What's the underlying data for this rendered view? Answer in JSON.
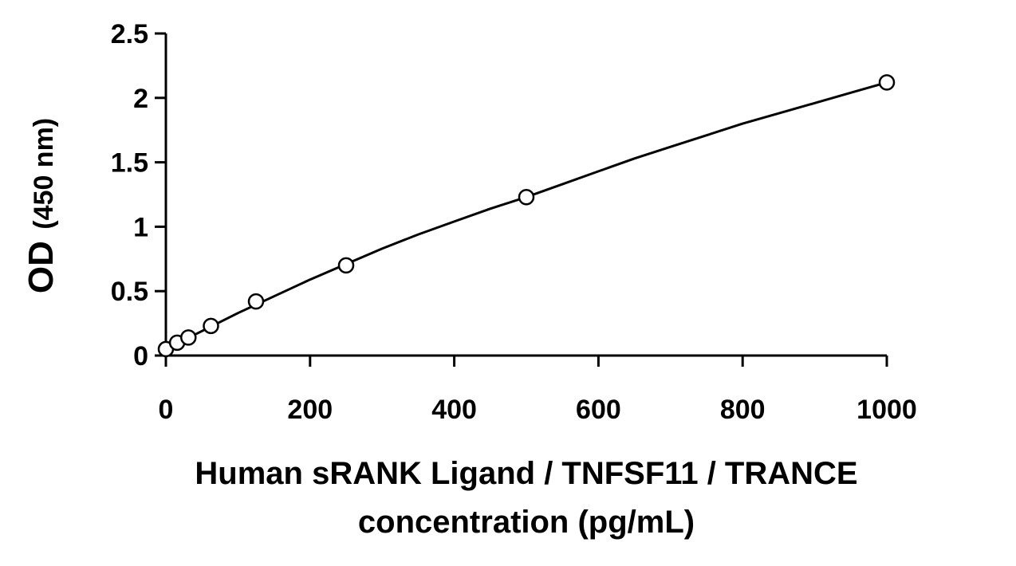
{
  "chart_data": {
    "type": "scatter",
    "title": "",
    "xlabel_line1": "Human sRANK Ligand / TNFSF11 / TRANCE",
    "xlabel_line2": "concentration (pg/mL)",
    "ylabel_main": "OD",
    "ylabel_unit": "(450 nm)",
    "xlim": [
      0,
      1000
    ],
    "ylim": [
      0,
      2.5
    ],
    "x_ticks": [
      0,
      200,
      400,
      600,
      800,
      1000
    ],
    "y_ticks": [
      0,
      0.5,
      1,
      1.5,
      2,
      2.5
    ],
    "x_tick_labels": [
      "0",
      "200",
      "400",
      "600",
      "800",
      "1000"
    ],
    "y_tick_labels": [
      "0",
      "0.5",
      "1",
      "1.5",
      "2",
      "2.5"
    ],
    "grid": false,
    "legend": "none",
    "points": [
      {
        "x": 0,
        "y": 0.05
      },
      {
        "x": 15.6,
        "y": 0.1
      },
      {
        "x": 31.25,
        "y": 0.14
      },
      {
        "x": 62.5,
        "y": 0.23
      },
      {
        "x": 125,
        "y": 0.42
      },
      {
        "x": 250,
        "y": 0.7
      },
      {
        "x": 500,
        "y": 1.23
      },
      {
        "x": 1000,
        "y": 2.12
      }
    ],
    "fit_curve": {
      "x": [
        0,
        50,
        100,
        150,
        200,
        250,
        300,
        350,
        400,
        450,
        500,
        550,
        600,
        650,
        700,
        750,
        800,
        850,
        900,
        950,
        1000
      ],
      "y": [
        0.05,
        0.19,
        0.33,
        0.46,
        0.59,
        0.71,
        0.83,
        0.94,
        1.04,
        1.14,
        1.23,
        1.33,
        1.43,
        1.53,
        1.62,
        1.71,
        1.8,
        1.88,
        1.96,
        2.04,
        2.12
      ]
    },
    "colors": {
      "line": "#000000",
      "marker_edge": "#000000",
      "marker_fill": "#ffffff"
    }
  }
}
